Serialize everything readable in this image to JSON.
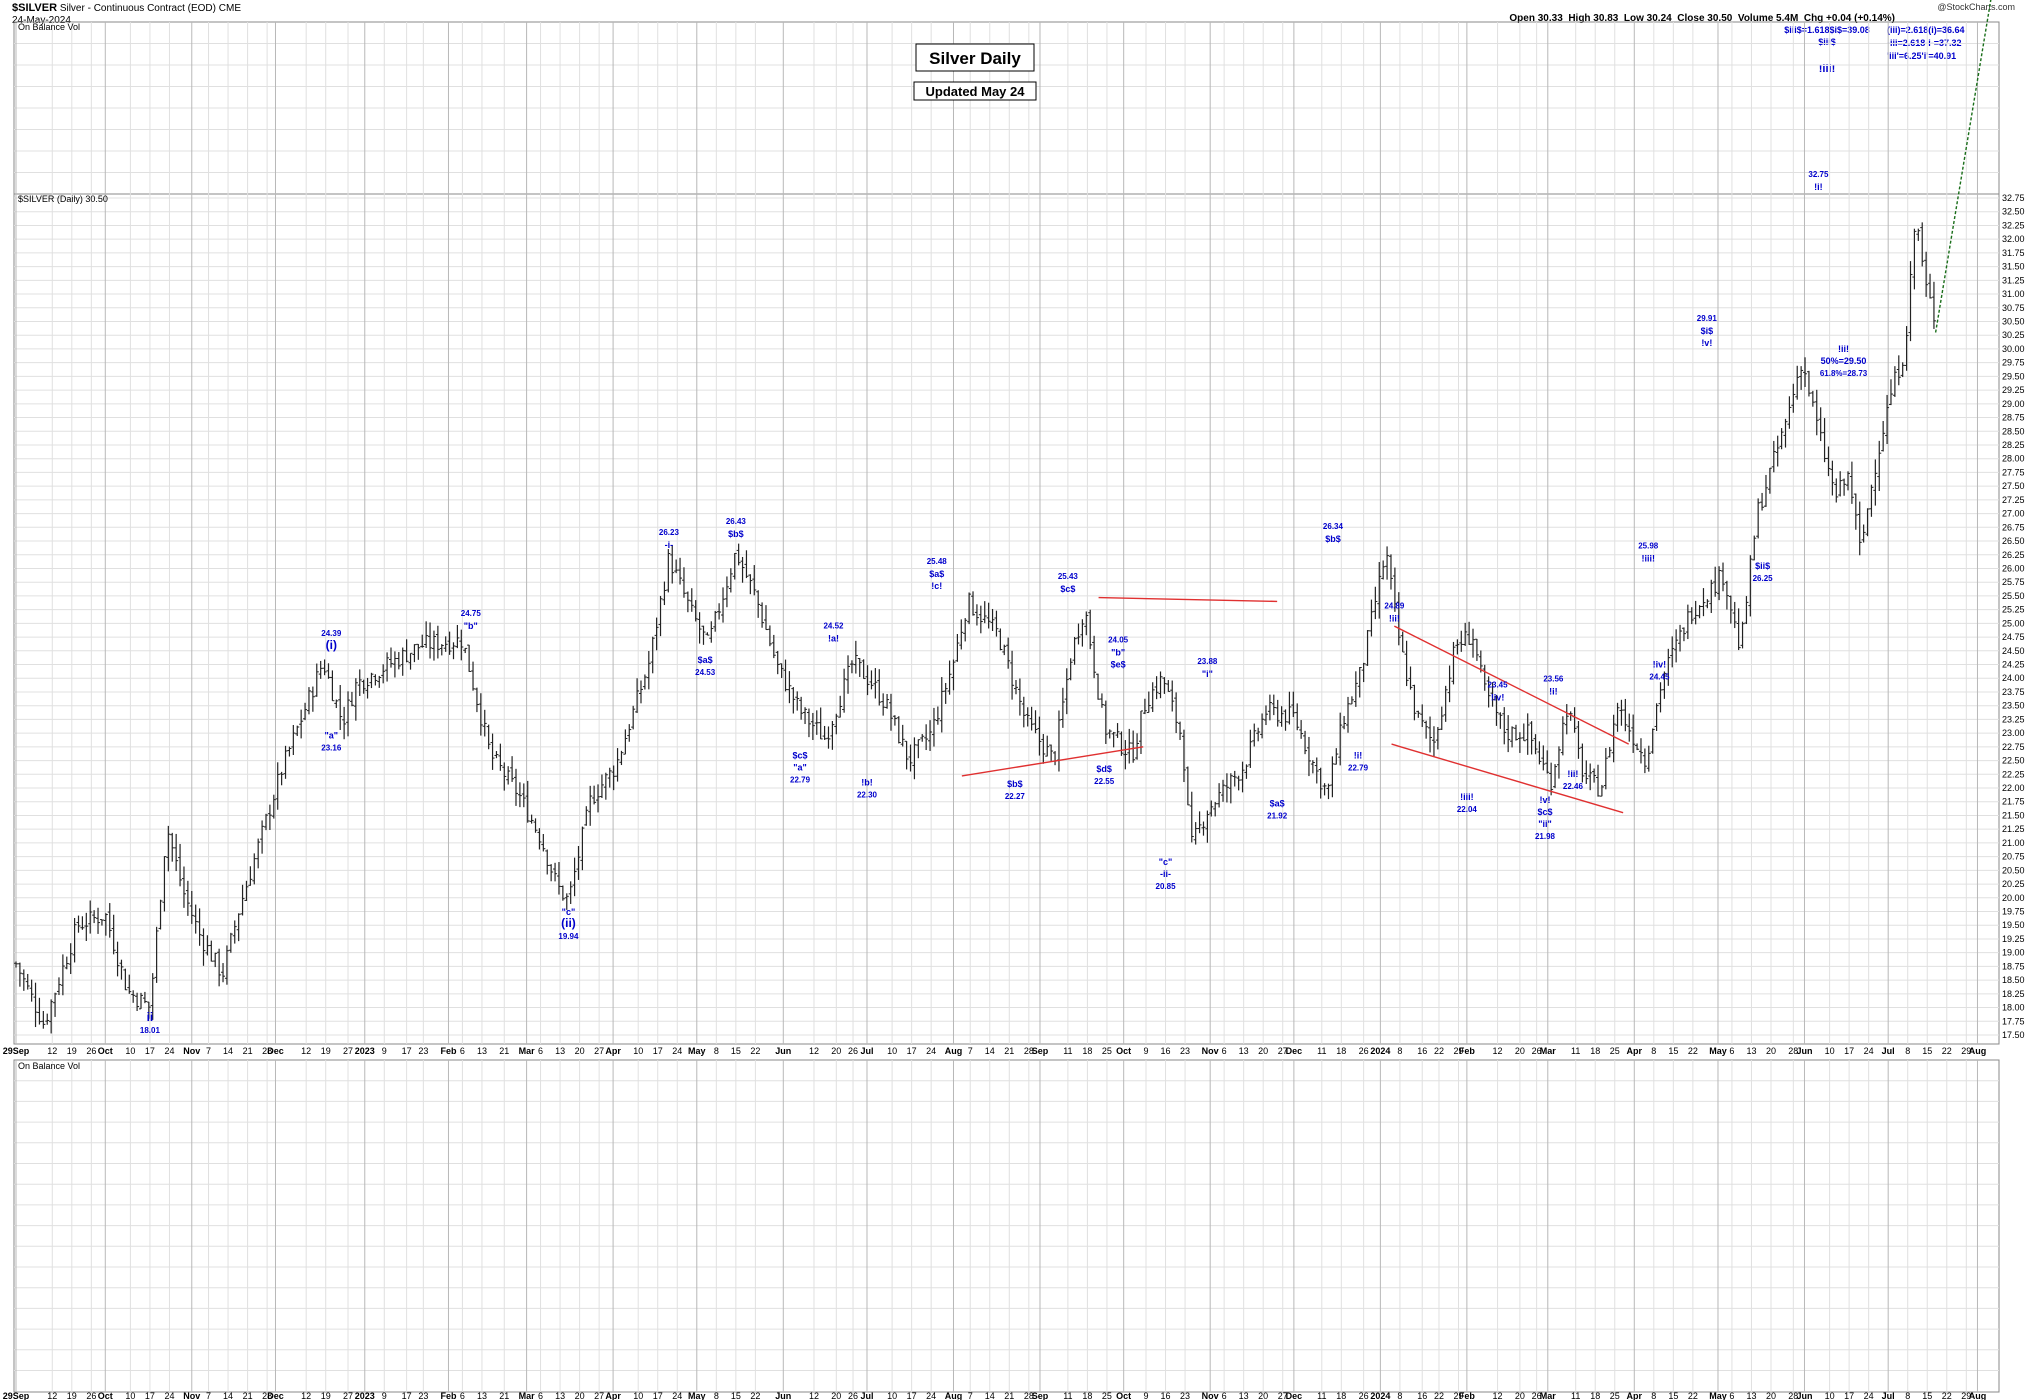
{
  "header": {
    "symbol": "$SILVER",
    "name": "Silver - Continuous Contract (EOD)",
    "exchange": "CME",
    "date": "24-May-2024",
    "open": "Open 30.33",
    "high": "High 30.83",
    "low": "Low 30.24",
    "close": "Close 30.50",
    "volume": "Volume 5.4M",
    "change": "Chg +0.04 (+0.14%)",
    "watermark": "@StockCharts.com"
  },
  "panels": {
    "top_indicator": "On Balance Vol",
    "price_label": "$SILVER (Daily) 30.50",
    "bottom_indicator": "On Balance Vol"
  },
  "boxes": {
    "title": "Silver Daily",
    "updated": "Updated May 24"
  },
  "targets": {
    "left": [
      "$iii$=1.618$i$=39.08",
      "$iii$",
      "!iii!"
    ],
    "right": [
      "(iii)=2.618(i)=36.64",
      "-iii=2.618-i-=37.32",
      "'iii'=6.25'i'=40.91"
    ]
  },
  "colors": {
    "bars": "#222222",
    "annotations": "#0000cc",
    "trendlines": "#e03030",
    "projection": "#1a6e1a",
    "grid": "#e0e0e0"
  },
  "chart_data": {
    "type": "ohlc",
    "ylim": [
      17.5,
      32.75
    ],
    "yticks": [
      17.5,
      17.75,
      18,
      18.25,
      18.5,
      18.75,
      19,
      19.25,
      19.5,
      19.75,
      20,
      20.25,
      20.5,
      20.75,
      21,
      21.25,
      21.5,
      21.75,
      22,
      22.25,
      22.5,
      22.75,
      23,
      23.25,
      23.5,
      23.75,
      24,
      24.25,
      24.5,
      24.75,
      25,
      25.25,
      25.5,
      25.75,
      26,
      26.25,
      26.5,
      26.75,
      27,
      27.25,
      27.5,
      27.75,
      28,
      28.25,
      28.5,
      28.75,
      29,
      29.25,
      29.5,
      29.75,
      30,
      30.25,
      30.5,
      30.75,
      31,
      31.25,
      31.5,
      31.75,
      32,
      32.25,
      32.5,
      32.75
    ],
    "xticks": [
      {
        "label": "29Sep",
        "d": 0,
        "major": true
      },
      {
        "label": "12",
        "d": 13
      },
      {
        "label": "19",
        "d": 20
      },
      {
        "label": "26",
        "d": 27
      },
      {
        "label": "Oct",
        "d": 32,
        "major": true
      },
      {
        "label": "10",
        "d": 41
      },
      {
        "label": "17",
        "d": 48
      },
      {
        "label": "24",
        "d": 55
      },
      {
        "label": "Nov",
        "d": 63,
        "major": true
      },
      {
        "label": "7",
        "d": 69
      },
      {
        "label": "14",
        "d": 76
      },
      {
        "label": "21",
        "d": 83
      },
      {
        "label": "28",
        "d": 90
      },
      {
        "label": "Dec",
        "d": 93,
        "major": true
      },
      {
        "label": "12",
        "d": 104
      },
      {
        "label": "19",
        "d": 111
      },
      {
        "label": "27",
        "d": 119
      },
      {
        "label": "2023",
        "d": 125,
        "major": true
      },
      {
        "label": "9",
        "d": 132
      },
      {
        "label": "17",
        "d": 140
      },
      {
        "label": "23",
        "d": 146
      },
      {
        "label": "Feb",
        "d": 155,
        "major": true
      },
      {
        "label": "6",
        "d": 160
      },
      {
        "label": "13",
        "d": 167
      },
      {
        "label": "21",
        "d": 175
      },
      {
        "label": "Mar",
        "d": 183,
        "major": true
      },
      {
        "label": "6",
        "d": 188
      },
      {
        "label": "13",
        "d": 195
      },
      {
        "label": "20",
        "d": 202
      },
      {
        "label": "27",
        "d": 209
      },
      {
        "label": "Apr",
        "d": 214,
        "major": true
      },
      {
        "label": "10",
        "d": 223
      },
      {
        "label": "17",
        "d": 230
      },
      {
        "label": "24",
        "d": 237
      },
      {
        "label": "May",
        "d": 244,
        "major": true
      },
      {
        "label": "8",
        "d": 251
      },
      {
        "label": "15",
        "d": 258
      },
      {
        "label": "22",
        "d": 265
      },
      {
        "label": "Jun",
        "d": 275,
        "major": true
      },
      {
        "label": "12",
        "d": 286
      },
      {
        "label": "20",
        "d": 294
      },
      {
        "label": "26",
        "d": 300
      },
      {
        "label": "Jul",
        "d": 305,
        "major": true
      },
      {
        "label": "10",
        "d": 314
      },
      {
        "label": "17",
        "d": 321
      },
      {
        "label": "24",
        "d": 328
      },
      {
        "label": "Aug",
        "d": 336,
        "major": true
      },
      {
        "label": "7",
        "d": 342
      },
      {
        "label": "14",
        "d": 349
      },
      {
        "label": "21",
        "d": 356
      },
      {
        "label": "28",
        "d": 363
      },
      {
        "label": "Sep",
        "d": 367,
        "major": true
      },
      {
        "label": "11",
        "d": 377
      },
      {
        "label": "18",
        "d": 384
      },
      {
        "label": "25",
        "d": 391
      },
      {
        "label": "Oct",
        "d": 397,
        "major": true
      },
      {
        "label": "9",
        "d": 405
      },
      {
        "label": "16",
        "d": 412
      },
      {
        "label": "23",
        "d": 419
      },
      {
        "label": "Nov",
        "d": 428,
        "major": true
      },
      {
        "label": "6",
        "d": 433
      },
      {
        "label": "13",
        "d": 440
      },
      {
        "label": "20",
        "d": 447
      },
      {
        "label": "27",
        "d": 454
      },
      {
        "label": "Dec",
        "d": 458,
        "major": true
      },
      {
        "label": "11",
        "d": 468
      },
      {
        "label": "18",
        "d": 475
      },
      {
        "label": "26",
        "d": 483
      },
      {
        "label": "2024",
        "d": 489,
        "major": true
      },
      {
        "label": "8",
        "d": 496
      },
      {
        "label": "16",
        "d": 504
      },
      {
        "label": "22",
        "d": 510
      },
      {
        "label": "29",
        "d": 517
      },
      {
        "label": "Feb",
        "d": 520,
        "major": true
      },
      {
        "label": "12",
        "d": 531
      },
      {
        "label": "20",
        "d": 539
      },
      {
        "label": "26",
        "d": 545
      },
      {
        "label": "Mar",
        "d": 549,
        "major": true
      },
      {
        "label": "11",
        "d": 559
      },
      {
        "label": "18",
        "d": 566
      },
      {
        "label": "25",
        "d": 573
      },
      {
        "label": "Apr",
        "d": 580,
        "major": true
      },
      {
        "label": "8",
        "d": 587
      },
      {
        "label": "15",
        "d": 594
      },
      {
        "label": "22",
        "d": 601
      },
      {
        "label": "May",
        "d": 610,
        "major": true
      },
      {
        "label": "6",
        "d": 615
      },
      {
        "label": "13",
        "d": 622
      },
      {
        "label": "20",
        "d": 629
      },
      {
        "label": "28",
        "d": 637
      },
      {
        "label": "Jun",
        "d": 641,
        "major": true
      },
      {
        "label": "10",
        "d": 650
      },
      {
        "label": "17",
        "d": 657
      },
      {
        "label": "24",
        "d": 664
      },
      {
        "label": "Jul",
        "d": 671,
        "major": true
      },
      {
        "label": "8",
        "d": 678
      },
      {
        "label": "15",
        "d": 685
      },
      {
        "label": "22",
        "d": 692
      },
      {
        "label": "29",
        "d": 699
      },
      {
        "label": "Aug",
        "d": 703,
        "major": true
      }
    ],
    "anchors": [
      [
        0,
        18.8
      ],
      [
        10,
        17.7
      ],
      [
        22,
        19.5
      ],
      [
        32,
        19.7
      ],
      [
        40,
        18.3
      ],
      [
        48,
        18.0
      ],
      [
        54,
        21.3
      ],
      [
        60,
        20.1
      ],
      [
        66,
        19.3
      ],
      [
        74,
        18.6
      ],
      [
        80,
        19.8
      ],
      [
        95,
        22.3
      ],
      [
        110,
        24.3
      ],
      [
        117,
        23.2
      ],
      [
        122,
        23.9
      ],
      [
        145,
        24.6
      ],
      [
        160,
        24.7
      ],
      [
        170,
        22.6
      ],
      [
        180,
        21.9
      ],
      [
        188,
        21.1
      ],
      [
        194,
        20.2
      ],
      [
        198,
        19.94
      ],
      [
        206,
        21.8
      ],
      [
        215,
        22.4
      ],
      [
        227,
        24.3
      ],
      [
        234,
        26.2
      ],
      [
        242,
        25.2
      ],
      [
        248,
        24.6
      ],
      [
        258,
        26.3
      ],
      [
        265,
        25.5
      ],
      [
        273,
        24.2
      ],
      [
        281,
        23.4
      ],
      [
        290,
        22.9
      ],
      [
        300,
        24.3
      ],
      [
        307,
        23.9
      ],
      [
        312,
        23.5
      ],
      [
        320,
        22.5
      ],
      [
        328,
        23.0
      ],
      [
        336,
        24.3
      ],
      [
        341,
        25.4
      ],
      [
        352,
        24.8
      ],
      [
        362,
        23.2
      ],
      [
        372,
        22.5
      ],
      [
        378,
        24.4
      ],
      [
        383,
        25.3
      ],
      [
        390,
        23.1
      ],
      [
        400,
        22.6
      ],
      [
        405,
        23.6
      ],
      [
        411,
        24.0
      ],
      [
        418,
        22.9
      ],
      [
        421,
        20.9
      ],
      [
        427,
        21.6
      ],
      [
        440,
        22.4
      ],
      [
        448,
        23.4
      ],
      [
        458,
        23.3
      ],
      [
        466,
        22.3
      ],
      [
        470,
        21.9
      ],
      [
        476,
        23.3
      ],
      [
        482,
        24.1
      ],
      [
        488,
        25.6
      ],
      [
        491,
        26.3
      ],
      [
        496,
        24.6
      ],
      [
        502,
        23.3
      ],
      [
        508,
        22.8
      ],
      [
        516,
        24.6
      ],
      [
        522,
        24.8
      ],
      [
        526,
        23.8
      ],
      [
        534,
        23.0
      ],
      [
        542,
        23.0
      ],
      [
        550,
        22.1
      ],
      [
        556,
        23.5
      ],
      [
        562,
        22.2
      ],
      [
        568,
        21.98
      ],
      [
        574,
        23.5
      ],
      [
        584,
        22.5
      ],
      [
        590,
        24.0
      ],
      [
        600,
        25.2
      ],
      [
        612,
        25.9
      ],
      [
        618,
        24.5
      ],
      [
        624,
        27.0
      ],
      [
        634,
        28.6
      ],
      [
        640,
        29.8
      ],
      [
        646,
        28.5
      ],
      [
        652,
        27.3
      ],
      [
        657,
        27.7
      ],
      [
        661,
        26.3
      ],
      [
        666,
        27.8
      ],
      [
        672,
        29.2
      ],
      [
        677,
        30.0
      ],
      [
        681,
        32.5
      ],
      [
        684,
        31.2
      ],
      [
        688,
        30.5
      ]
    ],
    "projection": {
      "from": [
        688,
        30.3
      ],
      "to": [
        712,
        37.8
      ]
    },
    "trendlines": [
      {
        "from": [
          388,
          25.47
        ],
        "to": [
          452,
          25.4
        ]
      },
      {
        "from": [
          339,
          22.22
        ],
        "to": [
          404,
          22.75
        ]
      },
      {
        "from": [
          494,
          24.95
        ],
        "to": [
          578,
          22.8
        ]
      },
      {
        "from": [
          493,
          22.8
        ],
        "to": [
          576,
          21.55
        ]
      }
    ],
    "annotations": [
      {
        "d": 48,
        "v": 18.01,
        "t": "ii",
        "pos": "below",
        "sub": "18.01",
        "big": true
      },
      {
        "d": 113,
        "v": 24.39,
        "t": "(i)",
        "pos": "above",
        "top": "24.39",
        "big": true
      },
      {
        "d": 113,
        "v": 23.16,
        "t": "\"a\"",
        "pos": "below",
        "sub": "23.16"
      },
      {
        "d": 163,
        "v": 24.75,
        "t": "\"b\"",
        "pos": "above",
        "top": "24.75"
      },
      {
        "d": 198,
        "v": 19.94,
        "t": "\"c\"",
        "pos": "below",
        "sub2": "(ii)",
        "sub": "19.94"
      },
      {
        "d": 234,
        "v": 26.23,
        "t": "-i-",
        "pos": "above",
        "top": "26.23"
      },
      {
        "d": 247,
        "v": 24.53,
        "t": "$a$",
        "pos": "below",
        "sub": "24.53"
      },
      {
        "d": 258,
        "v": 26.43,
        "t": "$b$",
        "pos": "above",
        "top": "26.43"
      },
      {
        "d": 281,
        "v": 22.79,
        "t": "$c$",
        "pos": "below",
        "sub2": "\"a\"",
        "sub": "22.79"
      },
      {
        "d": 293,
        "v": 24.52,
        "t": "!a!",
        "pos": "above",
        "top": "24.52"
      },
      {
        "d": 305,
        "v": 22.3,
        "t": "!b!",
        "pos": "below",
        "sub": "22.30"
      },
      {
        "d": 330,
        "v": 25.48,
        "t": "$a$",
        "pos": "above",
        "top": "25.48",
        "sub2": "!c!"
      },
      {
        "d": 358,
        "v": 22.27,
        "t": "$b$",
        "pos": "below",
        "sub": "22.27"
      },
      {
        "d": 377,
        "v": 25.43,
        "t": "$c$",
        "pos": "above",
        "top": "25.43"
      },
      {
        "d": 395,
        "v": 24.05,
        "t": "\"b\"",
        "pos": "above",
        "top": "24.05",
        "sub2": "$e$"
      },
      {
        "d": 390,
        "v": 22.55,
        "t": "$d$",
        "pos": "below",
        "sub": "22.55"
      },
      {
        "d": 412,
        "v": 20.85,
        "t": "\"c\"",
        "pos": "below",
        "sub2": "-ii-",
        "sub": "20.85"
      },
      {
        "d": 427,
        "v": 23.88,
        "t": "\"i\"",
        "pos": "above",
        "top": "23.88"
      },
      {
        "d": 452,
        "v": 21.92,
        "t": "$a$",
        "pos": "below",
        "sub": "21.92"
      },
      {
        "d": 472,
        "v": 26.34,
        "t": "$b$",
        "pos": "above",
        "top": "26.34"
      },
      {
        "d": 481,
        "v": 22.79,
        "t": "!i!",
        "pos": "below",
        "sub": "22.79"
      },
      {
        "d": 494,
        "v": 24.89,
        "t": "!ii!",
        "pos": "above",
        "top": "24.89"
      },
      {
        "d": 520,
        "v": 22.04,
        "t": "!iii!",
        "pos": "below",
        "sub": "22.04"
      },
      {
        "d": 531,
        "v": 23.45,
        "t": "!iv!",
        "pos": "above",
        "top": "23.45"
      },
      {
        "d": 548,
        "v": 21.98,
        "t": "!v!",
        "pos": "below",
        "sub2": "$c$",
        "sub3": "\"ii\"",
        "sub": "21.98"
      },
      {
        "d": 551,
        "v": 23.56,
        "t": "!i!",
        "pos": "above",
        "top": "23.56"
      },
      {
        "d": 558,
        "v": 22.46,
        "t": "!ii!",
        "pos": "below",
        "sub": "22.46"
      },
      {
        "d": 585,
        "v": 25.98,
        "t": "!iii!",
        "pos": "above",
        "top": "25.98"
      },
      {
        "d": 589,
        "v": 24.45,
        "t": "!iv!",
        "pos": "below",
        "sub": "24.45"
      },
      {
        "d": 606,
        "v": 29.91,
        "t": "$i$",
        "pos": "above",
        "top": "29.91",
        "sub2": "!v!"
      },
      {
        "d": 626,
        "v": 26.25,
        "t": "$ii$",
        "pos": "below",
        "sub": "26.25"
      },
      {
        "d": 646,
        "v": 32.75,
        "t": "!i!",
        "pos": "above",
        "top": "32.75"
      },
      {
        "d": 655,
        "v": 30.2,
        "t": "!ii!",
        "pos": "below",
        "sub2": "50%=29.50",
        "sub": "61.8%=28.73"
      }
    ]
  }
}
